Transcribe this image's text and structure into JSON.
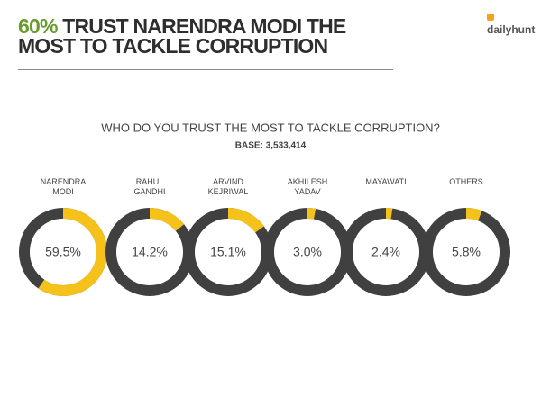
{
  "header": {
    "highlight": "60%",
    "title": "TRUST NARENDRA MODI THE MOST TO TACKLE CORRUPTION",
    "logo": "dailyhunt"
  },
  "chart_data": {
    "type": "donut",
    "title": "WHO DO YOU TRUST THE MOST TO TACKLE CORRUPTION?",
    "subtitle": "BASE: 3,533,414",
    "categories": [
      "NARENDRA MODI",
      "RAHUL GANDHI",
      "ARVIND KEJRIWAL",
      "AKHILESH YADAV",
      "MAYAWATI",
      "OTHERS"
    ],
    "values": [
      59.5,
      14.2,
      15.1,
      3.0,
      2.4,
      5.8
    ],
    "value_labels": [
      "59.5%",
      "14.2%",
      "15.1%",
      "3.0%",
      "2.4%",
      "5.8%"
    ],
    "color": "#f5c21b",
    "track_color": "#404040"
  }
}
